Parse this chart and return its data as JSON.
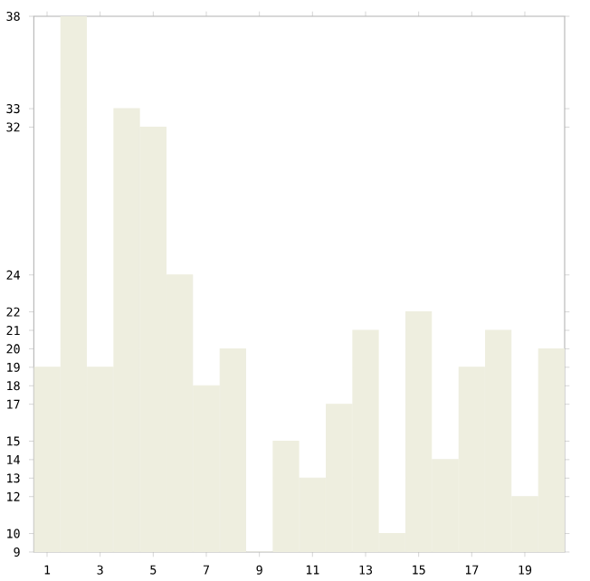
{
  "chart_data": {
    "type": "bar",
    "x": [
      1,
      2,
      3,
      4,
      5,
      6,
      7,
      8,
      9,
      10,
      11,
      12,
      13,
      14,
      15,
      16,
      17,
      18,
      19,
      20
    ],
    "values": [
      19,
      38,
      19,
      33,
      32,
      24,
      18,
      20,
      9,
      15,
      13,
      17,
      21,
      10,
      22,
      14,
      19,
      21,
      12,
      20
    ],
    "color": "#eeeedf",
    "xlim": [
      0.5,
      20.5
    ],
    "xticks": [
      1,
      3,
      5,
      7,
      9,
      11,
      13,
      15,
      17,
      19
    ],
    "ylim": [
      9,
      38
    ],
    "yticks": [
      9,
      10,
      12,
      13,
      14,
      15,
      17,
      18,
      19,
      20,
      21,
      22,
      24,
      32,
      33,
      38
    ]
  }
}
